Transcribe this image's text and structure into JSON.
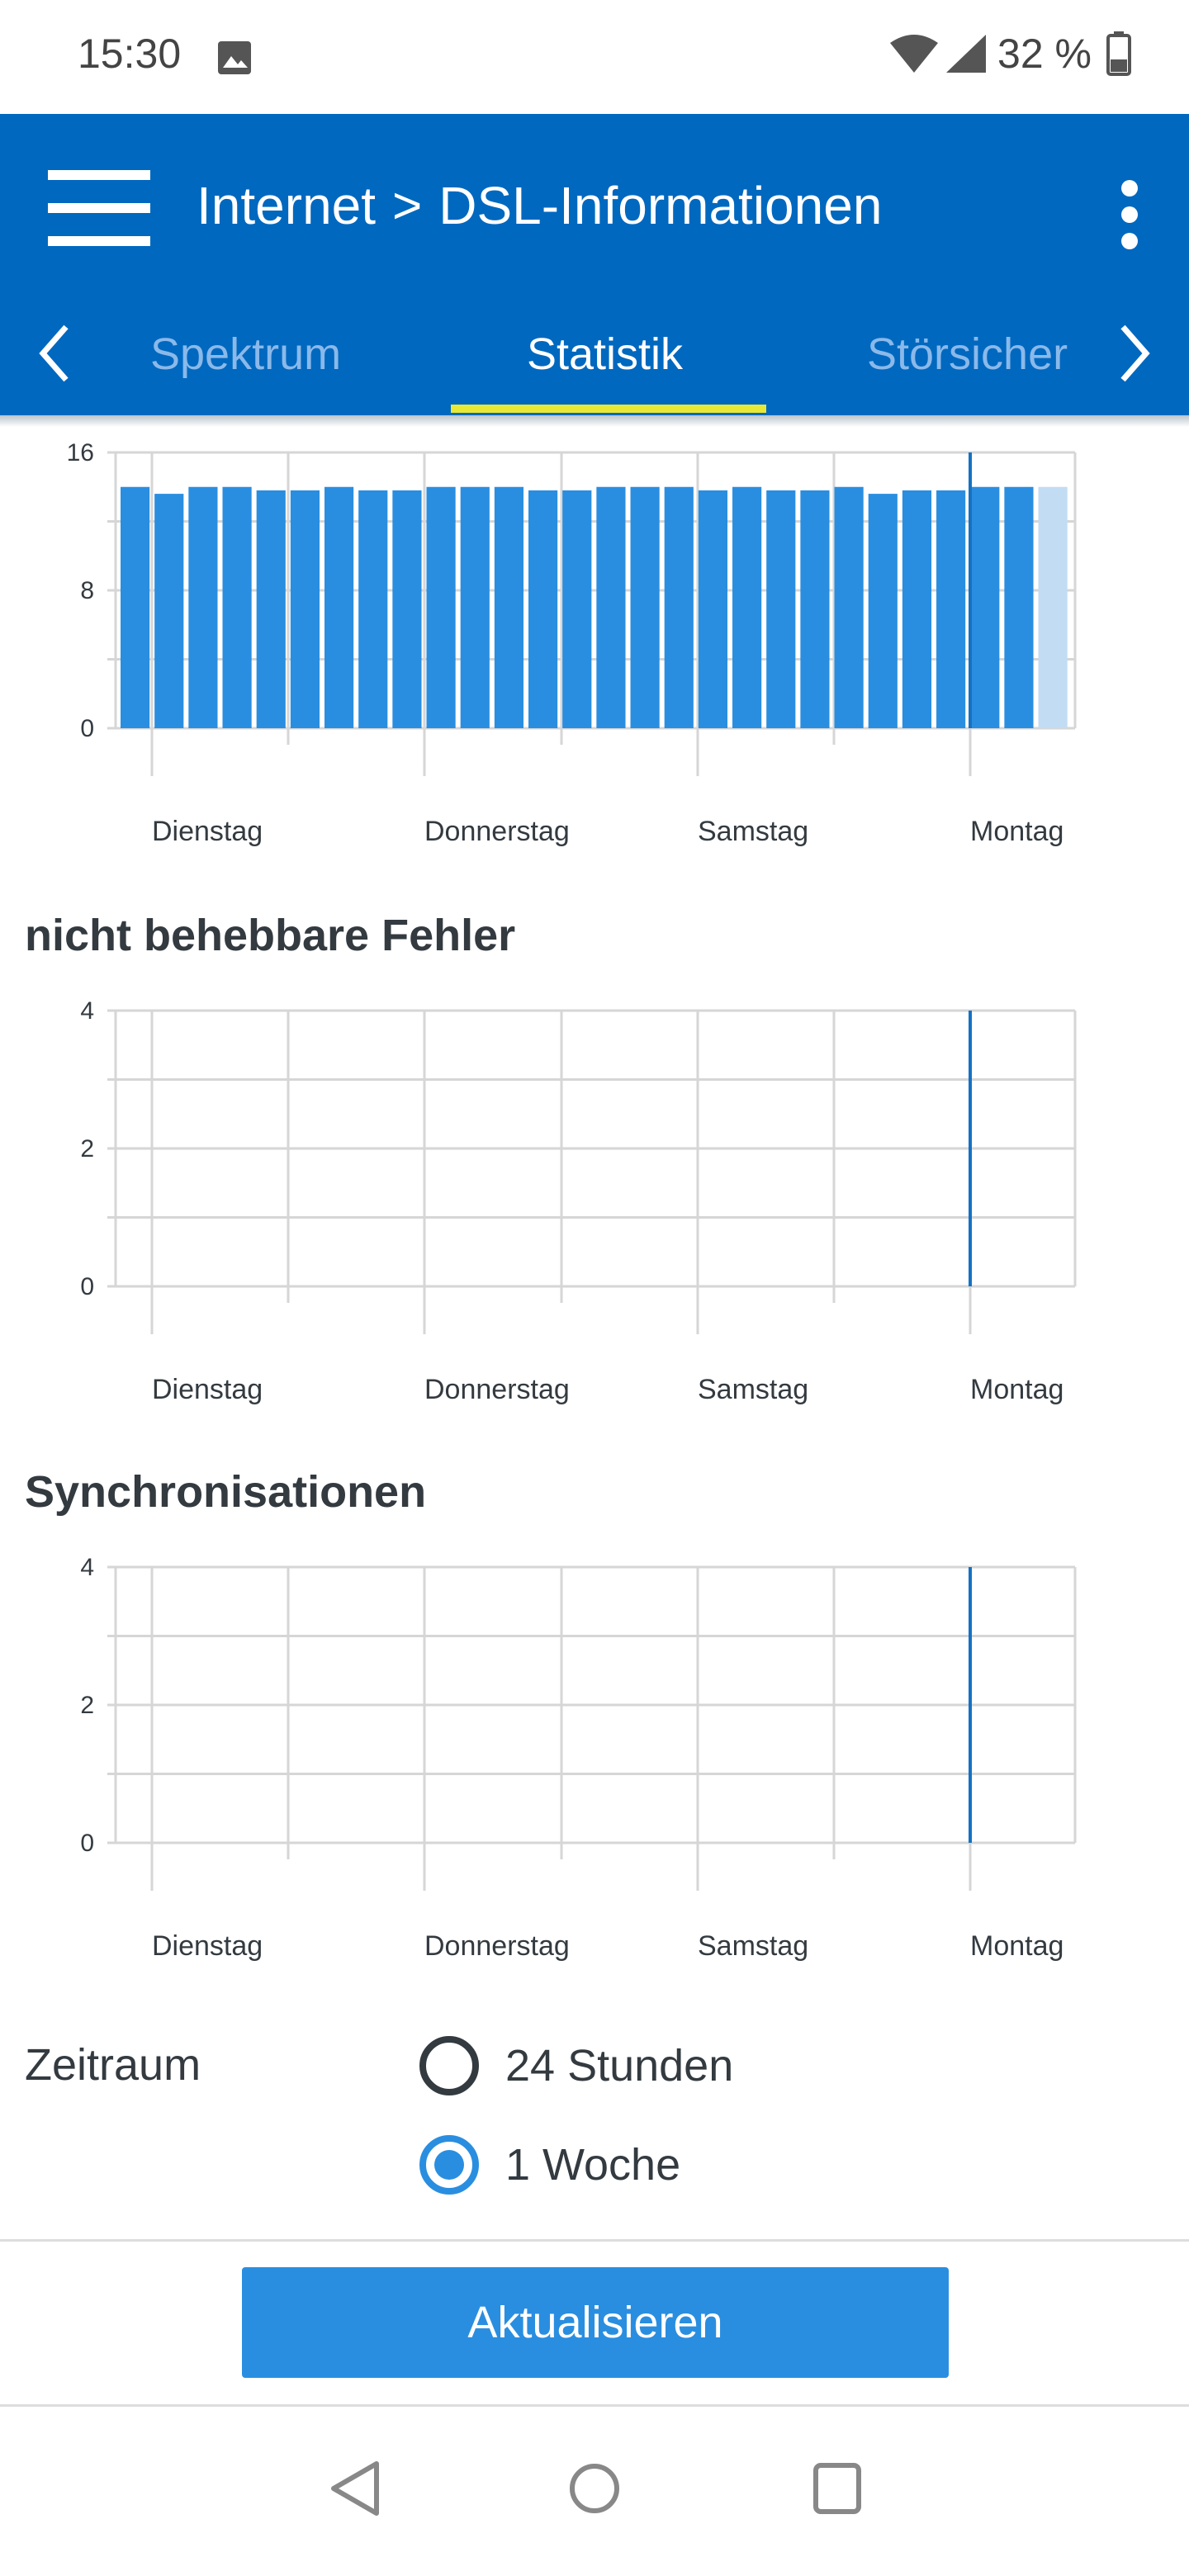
{
  "status_bar": {
    "time": "15:30",
    "battery_text": "32 %",
    "icons": [
      "image-icon",
      "wifi-icon",
      "signal-icon",
      "battery-icon"
    ]
  },
  "app_bar": {
    "title_part1": "Internet",
    "title_separator": ">",
    "title_part2": "DSL-Informationen",
    "tabs": [
      {
        "label": "Spektrum",
        "active": false
      },
      {
        "label": "Statistik",
        "active": true
      },
      {
        "label": "Störsicher",
        "active": false
      }
    ]
  },
  "colors": {
    "app_bar": "#0068bf",
    "accent": "#2a8ee0",
    "tab_indicator": "#e8e835",
    "bar": "#2a8ee0",
    "bar_current": "#c2dcf3",
    "marker_line": "#1572c2"
  },
  "chart_data": [
    {
      "type": "bar",
      "title": "",
      "y_ticks": [
        "16",
        "8",
        "0"
      ],
      "ylim": [
        0,
        16
      ],
      "x_tick_labels": [
        "Dienstag",
        "Donnerstag",
        "Samstag",
        "Montag"
      ],
      "values": [
        14,
        13.6,
        14,
        14,
        13.8,
        13.8,
        14,
        13.8,
        13.8,
        14,
        14,
        14,
        13.8,
        13.8,
        14,
        14,
        14,
        13.8,
        14,
        13.8,
        13.8,
        14,
        13.6,
        13.8,
        13.8,
        14,
        14,
        14
      ],
      "last_bar_current": true,
      "grid": true
    },
    {
      "type": "line",
      "title": "nicht behebbare Fehler",
      "y_ticks": [
        "4",
        "2",
        "0"
      ],
      "ylim": [
        0,
        4
      ],
      "x_tick_labels": [
        "Dienstag",
        "Donnerstag",
        "Samstag",
        "Montag"
      ],
      "values": [],
      "grid": true
    },
    {
      "type": "line",
      "title": "Synchronisationen",
      "y_ticks": [
        "4",
        "2",
        "0"
      ],
      "ylim": [
        0,
        4
      ],
      "x_tick_labels": [
        "Dienstag",
        "Donnerstag",
        "Samstag",
        "Montag"
      ],
      "values": [],
      "grid": true
    }
  ],
  "period": {
    "label": "Zeitraum",
    "options": [
      {
        "label": "24 Stunden",
        "selected": false
      },
      {
        "label": "1 Woche",
        "selected": true
      }
    ]
  },
  "refresh_button": "Aktualisieren",
  "nav_bar": {
    "icons": [
      "back-icon",
      "home-icon",
      "recents-icon"
    ]
  }
}
